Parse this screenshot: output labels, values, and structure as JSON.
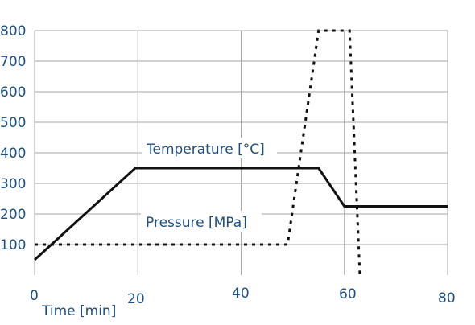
{
  "chart_data": {
    "type": "line",
    "xlabel": "Time [min]",
    "ylabel": "",
    "xlim": [
      0,
      80
    ],
    "ylim": [
      0,
      800
    ],
    "xticks": [
      0,
      20,
      40,
      60,
      80
    ],
    "xtick_labels": [
      "0",
      "20",
      "40",
      "60",
      "80"
    ],
    "yticks": [
      100,
      200,
      300,
      400,
      500,
      600,
      700,
      800
    ],
    "ytick_labels": [
      "100",
      "200",
      "300",
      "400",
      "500",
      "600",
      "700",
      "800"
    ],
    "grid": true,
    "series": [
      {
        "name": "Temperature [°C]",
        "style": "solid",
        "x": [
          0,
          19.5,
          55,
          60,
          80
        ],
        "y": [
          50,
          350,
          350,
          225,
          225
        ]
      },
      {
        "name": "Pressure [MPa]",
        "style": "dotted",
        "x": [
          0,
          49,
          55,
          61,
          63
        ],
        "y": [
          100,
          100,
          800,
          800,
          0
        ]
      }
    ]
  }
}
